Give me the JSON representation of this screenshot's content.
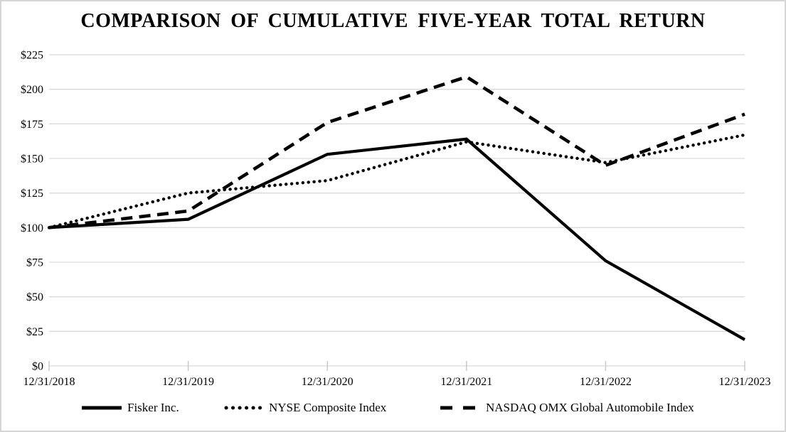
{
  "figure": {
    "title": "COMPARISON OF CUMULATIVE FIVE-YEAR TOTAL RETURN"
  },
  "colors": {
    "series_line": "#000000",
    "grid_line": "#d9d9d9",
    "tick_line": "#c9c9c9",
    "background": "#ffffff",
    "frame_border": "#d6d6d6",
    "text": "#000000"
  },
  "chart_data": {
    "type": "line",
    "title": "COMPARISON OF CUMULATIVE FIVE-YEAR TOTAL RETURN",
    "xlabel": "",
    "ylabel": "",
    "categories": [
      "12/31/2018",
      "12/31/2019",
      "12/31/2020",
      "12/31/2021",
      "12/31/2022",
      "12/31/2023"
    ],
    "series": [
      {
        "name": "Fisker Inc.",
        "style": "solid",
        "values": [
          100,
          106,
          153,
          164,
          76,
          19
        ]
      },
      {
        "name": "NYSE Composite Index",
        "style": "dotted",
        "values": [
          100,
          125,
          134,
          162,
          147,
          167
        ]
      },
      {
        "name": "NASDAQ OMX Global Automobile Index",
        "style": "dashed",
        "values": [
          100,
          112,
          176,
          209,
          145,
          182
        ]
      }
    ],
    "ylim": [
      0,
      225
    ],
    "y_tick_step": 25,
    "y_tick_labels": [
      "$0",
      "$25",
      "$50",
      "$75",
      "$100",
      "$125",
      "$150",
      "$175",
      "$200",
      "$225"
    ],
    "grid": "horizontal-only",
    "legend_position": "bottom"
  }
}
